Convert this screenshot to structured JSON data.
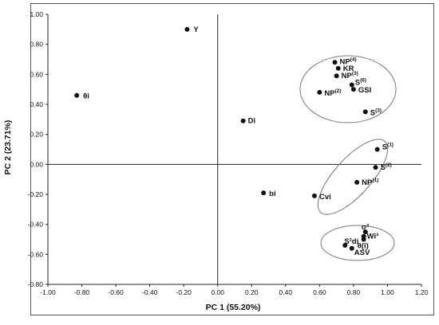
{
  "chart_data": {
    "type": "scatter",
    "title": "",
    "xlabel": "PC 1 (55.20%)",
    "ylabel": "PC 2 (23.71%)",
    "xlim": [
      -1.0,
      1.2
    ],
    "ylim": [
      -0.8,
      1.0
    ],
    "xticks": [
      "-1.00",
      "-0.80",
      "-0.60",
      "-0.40",
      "-0.20",
      "0.00",
      "0.20",
      "0.40",
      "0.60",
      "0.80",
      "1.00",
      "1.20"
    ],
    "yticks": [
      "1.00",
      "0.80",
      "0.60",
      "0.40",
      "0.20",
      "0.00",
      "-0.20",
      "-0.40",
      "-0.60",
      "-0.80"
    ],
    "grid": false,
    "points": [
      {
        "label": "Y",
        "sup": "",
        "x": -0.18,
        "y": 0.9
      },
      {
        "label": "θi",
        "sup": "",
        "x": -0.83,
        "y": 0.46
      },
      {
        "label": "Di",
        "sup": "",
        "x": 0.15,
        "y": 0.29
      },
      {
        "label": "bi",
        "sup": "",
        "x": 0.27,
        "y": -0.19
      },
      {
        "label": "NP",
        "sup": "(4)",
        "x": 0.69,
        "y": 0.68
      },
      {
        "label": "KR",
        "sup": "",
        "x": 0.71,
        "y": 0.64
      },
      {
        "label": "NP",
        "sup": "(3)",
        "x": 0.7,
        "y": 0.59
      },
      {
        "label": "S",
        "sup": "(6)",
        "x": 0.79,
        "y": 0.53
      },
      {
        "label": "GSI",
        "sup": "",
        "x": 0.8,
        "y": 0.5
      },
      {
        "label": "NP",
        "sup": "(2)",
        "x": 0.6,
        "y": 0.48
      },
      {
        "label": "S",
        "sup": "(3)",
        "x": 0.87,
        "y": 0.35
      },
      {
        "label": "S",
        "sup": "(1)",
        "x": 0.94,
        "y": 0.1
      },
      {
        "label": "S",
        "sup": "(2)",
        "x": 0.93,
        "y": -0.02
      },
      {
        "label": "NP",
        "sup": "(1)",
        "x": 0.82,
        "y": -0.12
      },
      {
        "label": "Cvi",
        "sup": "",
        "x": 0.57,
        "y": -0.21
      },
      {
        "label": "σ²",
        "sup": "",
        "x": 0.87,
        "y": -0.45
      },
      {
        "label": "Wi²",
        "sup": "",
        "x": 0.86,
        "y": -0.48
      },
      {
        "label": "θ(i)",
        "sup": "",
        "x": 0.86,
        "y": -0.5
      },
      {
        "label": "S²di",
        "sup": "",
        "x": 0.75,
        "y": -0.54
      },
      {
        "label": "ASV",
        "sup": "",
        "x": 0.79,
        "y": -0.56
      }
    ]
  }
}
